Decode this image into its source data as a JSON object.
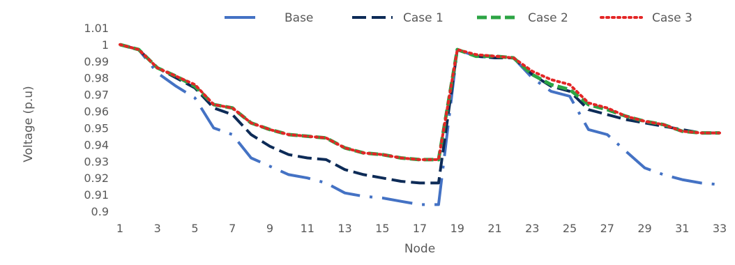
{
  "chart_data": {
    "type": "line",
    "title": "",
    "xlabel": "Node",
    "ylabel": "Voltage (p.u)",
    "ylim": [
      0.9,
      1.01
    ],
    "yticks": [
      "0.9",
      "0.91",
      "0.92",
      "0.93",
      "0.94",
      "0.95",
      "0.96",
      "0.97",
      "0.98",
      "0.99",
      "1",
      "1.01"
    ],
    "xticks": [
      "1",
      "3",
      "5",
      "7",
      "9",
      "11",
      "13",
      "15",
      "17",
      "19",
      "21",
      "23",
      "25",
      "27",
      "29",
      "31",
      "33"
    ],
    "x": [
      1,
      2,
      3,
      4,
      5,
      6,
      7,
      8,
      9,
      10,
      11,
      12,
      13,
      14,
      15,
      16,
      17,
      18,
      19,
      20,
      21,
      22,
      23,
      24,
      25,
      26,
      27,
      28,
      29,
      30,
      31,
      32,
      33
    ],
    "grid": false,
    "legend_position": "top",
    "series": [
      {
        "name": "Base",
        "color": "#4472C4",
        "dash": "long-dash-dot",
        "values": [
          1.0,
          0.997,
          0.983,
          0.975,
          0.968,
          0.95,
          0.946,
          0.932,
          0.927,
          0.922,
          0.92,
          0.917,
          0.911,
          0.909,
          0.908,
          0.906,
          0.904,
          0.904,
          0.997,
          0.993,
          0.992,
          0.992,
          0.98,
          0.972,
          0.969,
          0.949,
          0.946,
          0.936,
          0.926,
          0.922,
          0.919,
          0.917,
          0.916
        ]
      },
      {
        "name": "Case 1",
        "color": "#0D2B57",
        "dash": "long-dash",
        "values": [
          1.0,
          0.997,
          0.986,
          0.98,
          0.974,
          0.962,
          0.958,
          0.946,
          0.939,
          0.934,
          0.932,
          0.931,
          0.925,
          0.922,
          0.92,
          0.918,
          0.917,
          0.917,
          0.997,
          0.993,
          0.992,
          0.992,
          0.982,
          0.975,
          0.972,
          0.961,
          0.958,
          0.955,
          0.953,
          0.951,
          0.949,
          0.947,
          0.947
        ]
      },
      {
        "name": "Case 2",
        "color": "#2CA444",
        "dash": "dash",
        "values": [
          1.0,
          0.997,
          0.986,
          0.981,
          0.975,
          0.964,
          0.962,
          0.953,
          0.949,
          0.946,
          0.945,
          0.944,
          0.938,
          0.935,
          0.934,
          0.932,
          0.931,
          0.931,
          0.997,
          0.993,
          0.993,
          0.992,
          0.982,
          0.976,
          0.973,
          0.964,
          0.961,
          0.957,
          0.954,
          0.952,
          0.948,
          0.947,
          0.947
        ]
      },
      {
        "name": "Case 3",
        "color": "#E32626",
        "dash": "dot",
        "values": [
          1.0,
          0.997,
          0.986,
          0.981,
          0.976,
          0.964,
          0.962,
          0.953,
          0.949,
          0.946,
          0.945,
          0.944,
          0.938,
          0.935,
          0.934,
          0.932,
          0.931,
          0.931,
          0.997,
          0.994,
          0.993,
          0.992,
          0.984,
          0.979,
          0.976,
          0.965,
          0.962,
          0.957,
          0.954,
          0.952,
          0.948,
          0.947,
          0.947
        ]
      }
    ]
  }
}
